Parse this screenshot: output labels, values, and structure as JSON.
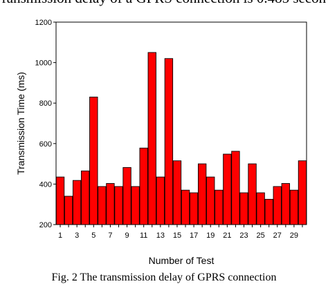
{
  "page": {
    "top_caption": "ransmission delay of a GPRS connection is 0.485 secon",
    "bottom_caption": "Fig. 2 The transmission delay of GPRS connection"
  },
  "chart_data": {
    "type": "bar",
    "x": [
      1,
      2,
      3,
      4,
      5,
      6,
      7,
      8,
      9,
      10,
      11,
      12,
      13,
      14,
      15,
      16,
      17,
      18,
      19,
      20,
      21,
      22,
      23,
      24,
      25,
      26,
      27,
      28,
      29,
      30
    ],
    "values": [
      435,
      340,
      418,
      465,
      830,
      388,
      403,
      388,
      482,
      388,
      578,
      1050,
      435,
      1020,
      515,
      370,
      357,
      500,
      435,
      370,
      548,
      562,
      357,
      500,
      357,
      325,
      388,
      403,
      370,
      515
    ],
    "xticks": [
      "1",
      "3",
      "5",
      "7",
      "9",
      "11",
      "13",
      "15",
      "17",
      "19",
      "21",
      "23",
      "25",
      "27",
      "29"
    ],
    "yticks": [
      200,
      400,
      600,
      800,
      1000,
      1200
    ],
    "ylim": [
      200,
      1200
    ],
    "xlabel": "Number of Test",
    "ylabel": "Transmission Time (ms)",
    "bar_color": "#ff0000",
    "edge_color": "#000000",
    "grid": false
  }
}
